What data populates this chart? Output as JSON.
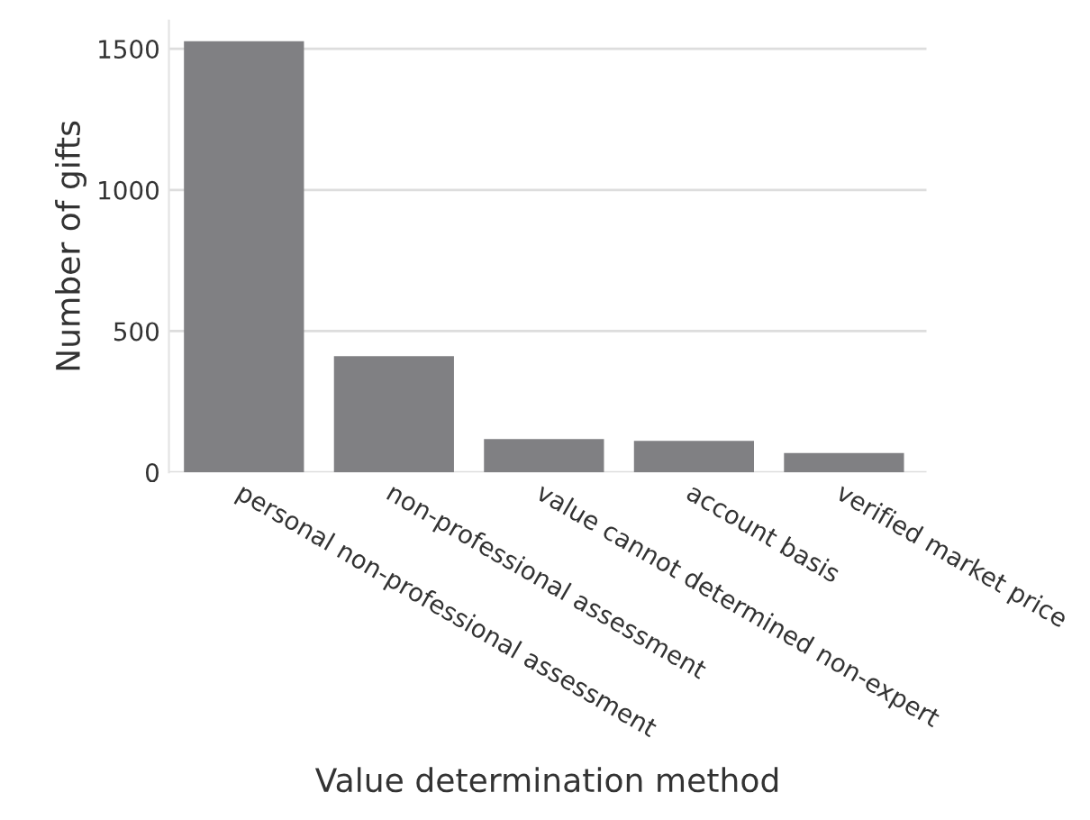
{
  "chart_data": {
    "type": "bar",
    "xlabel": "Value determination method",
    "ylabel": "Number of gifts",
    "categories": [
      "personal non-professional assessment",
      "non-professional assessment",
      "value cannot determined non-expert",
      "account basis",
      "verified market price"
    ],
    "values": [
      1527,
      411,
      118,
      111,
      68
    ],
    "color": "#808083",
    "ylim": [
      0,
      1600
    ],
    "yticks": [
      0,
      500,
      1000,
      1500
    ],
    "grid": "y"
  }
}
